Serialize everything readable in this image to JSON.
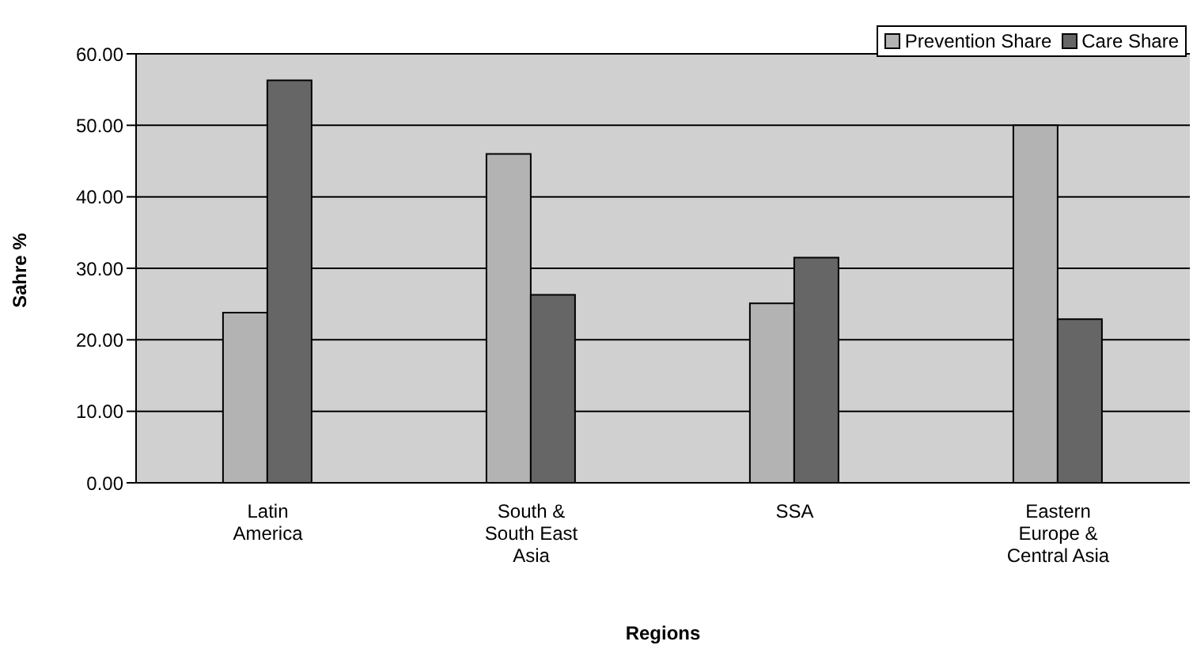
{
  "chart_data": {
    "type": "bar",
    "xlabel": "Regions",
    "ylabel": "Sahre %",
    "categories": [
      "Latin America",
      "South & South East Asia",
      "SSA",
      "Eastern Europe & Central Asia"
    ],
    "series": [
      {
        "name": "Prevention Share",
        "color": "#b3b3b3",
        "values": [
          23.8,
          46.0,
          25.1,
          50.0
        ]
      },
      {
        "name": "Care Share",
        "color": "#666666",
        "values": [
          56.3,
          26.3,
          31.5,
          22.9
        ]
      }
    ],
    "ylim": [
      0,
      60
    ],
    "yticks": [
      {
        "value": 0,
        "label": "0.00"
      },
      {
        "value": 10,
        "label": "10.00"
      },
      {
        "value": 20,
        "label": "20.00"
      },
      {
        "value": 30,
        "label": "30.00"
      },
      {
        "value": 40,
        "label": "40.00"
      },
      {
        "value": 50,
        "label": "50.00"
      },
      {
        "value": 60,
        "label": "60.00"
      }
    ],
    "grid": "y",
    "legend": "top right"
  }
}
